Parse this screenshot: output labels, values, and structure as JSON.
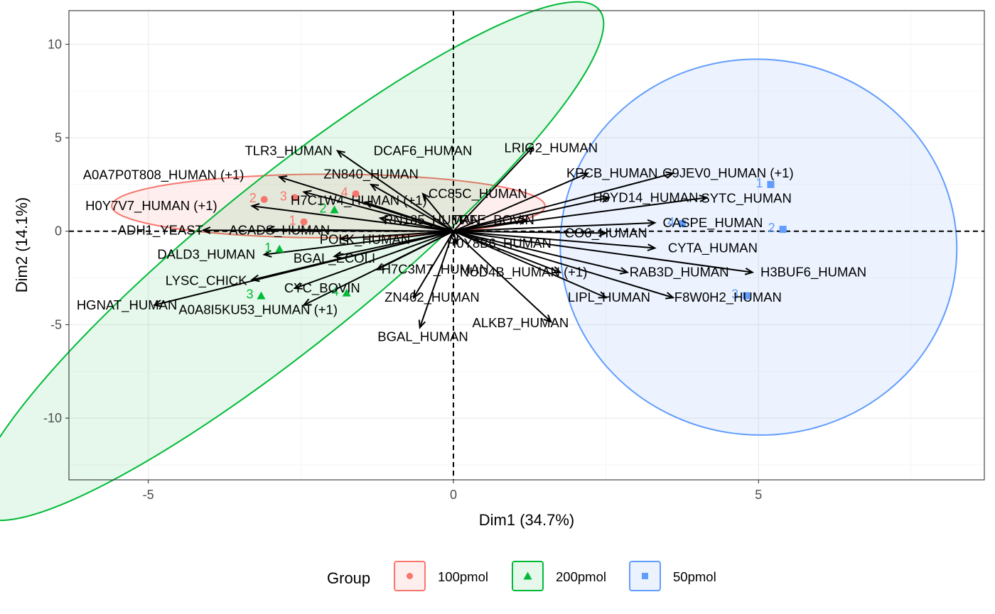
{
  "chart_data": {
    "type": "scatter",
    "subtype": "pca-biplot",
    "xlabel": "Dim1 (34.7%)",
    "ylabel": "Dim2 (14.1%)",
    "xlim": [
      -6.3,
      8.7
    ],
    "ylim": [
      -13.3,
      11.8
    ],
    "xticks": [
      -5,
      0,
      5
    ],
    "yticks": [
      -10,
      -5,
      0,
      5,
      10
    ],
    "xtick_labels": [
      "-5",
      "0",
      "5"
    ],
    "ytick_labels": [
      "-10",
      "-5",
      "0",
      "5",
      "10"
    ],
    "grid": true,
    "legend": {
      "title": "Group",
      "placement": "bottom",
      "entries": [
        {
          "label": "100pmol",
          "color": "#F8766D",
          "shape": "circle"
        },
        {
          "label": "200pmol",
          "color": "#00BA38",
          "shape": "triangle"
        },
        {
          "label": "50pmol",
          "color": "#619CFF",
          "shape": "square"
        }
      ]
    },
    "ellipses": [
      {
        "group": "100pmol",
        "cx": -2.05,
        "cy": 1.35,
        "rx": 3.55,
        "ry": 1.7,
        "angle": 0,
        "color": "#F8766D"
      },
      {
        "group": "200pmol",
        "cx": -2.7,
        "cy": -1.6,
        "rx": 6.55,
        "ry": 4.4,
        "angle": 39,
        "color": "#00BA38"
      },
      {
        "group": "50pmol",
        "cx": 5.0,
        "cy": -0.85,
        "rx": 3.25,
        "ry": 10.05,
        "angle": -5,
        "color": "#619CFF"
      }
    ],
    "series": [
      {
        "name": "100pmol",
        "color": "#F8766D",
        "points": [
          {
            "label": "1",
            "x": -2.45,
            "y": 0.5
          },
          {
            "label": "2",
            "x": -3.1,
            "y": 1.7
          },
          {
            "label": "3",
            "x": -2.6,
            "y": 1.8
          },
          {
            "label": "4",
            "x": -1.6,
            "y": 2.0
          }
        ]
      },
      {
        "name": "200pmol",
        "color": "#00BA38",
        "points": [
          {
            "label": "1",
            "x": -2.85,
            "y": -0.95
          },
          {
            "label": "2",
            "x": -1.95,
            "y": 1.15
          },
          {
            "label": "3",
            "x": -3.15,
            "y": -3.45
          },
          {
            "label": "4",
            "x": -1.75,
            "y": -3.3
          }
        ]
      },
      {
        "name": "50pmol",
        "color": "#619CFF",
        "points": [
          {
            "label": "1",
            "x": 5.2,
            "y": 2.5
          },
          {
            "label": "2",
            "x": 5.4,
            "y": 0.1
          },
          {
            "label": "3",
            "x": 4.8,
            "y": -3.45
          },
          {
            "label": "4",
            "x": 3.75,
            "y": 0.4
          }
        ]
      }
    ],
    "loadings": [
      {
        "label": "TLR3_HUMAN",
        "x": -1.9,
        "y": 4.3,
        "lx": -2.7,
        "ly": 4.3
      },
      {
        "label": "DCAF6_HUMAN",
        "x": -1.35,
        "y": 2.5,
        "lx": -0.5,
        "ly": 4.3
      },
      {
        "label": "LRIG2_HUMAN",
        "x": 1.3,
        "y": 4.5,
        "lx": 1.6,
        "ly": 4.45
      },
      {
        "label": "A0A7P0T808_HUMAN (+1)",
        "x": -2.85,
        "y": 2.9,
        "lx": -4.75,
        "ly": 3.0
      },
      {
        "label": "ZN840_HUMAN",
        "x": -2.45,
        "y": 2.1,
        "lx": -1.35,
        "ly": 3.05
      },
      {
        "label": "KPCB_HUMAN",
        "x": 2.2,
        "y": 3.1,
        "lx": 2.6,
        "ly": 3.1
      },
      {
        "label": "C9JEV0_HUMAN (+1)",
        "x": 3.6,
        "y": 3.1,
        "lx": 4.5,
        "ly": 3.1
      },
      {
        "label": "CC85C_HUMAN",
        "x": -0.5,
        "y": 2.0,
        "lx": 0.4,
        "ly": 2.0
      },
      {
        "label": "H7C1W4_HUMAN (+1)",
        "x": -1.45,
        "y": 1.55,
        "lx": -1.55,
        "ly": 1.65
      },
      {
        "label": "H0YD14_HUMAN",
        "x": 2.55,
        "y": 1.8,
        "lx": 3.15,
        "ly": 1.8
      },
      {
        "label": "SYTC_HUMAN",
        "x": 4.15,
        "y": 1.8,
        "lx": 4.8,
        "ly": 1.75
      },
      {
        "label": "H0Y7V7_HUMAN (+1)",
        "x": -3.3,
        "y": 1.35,
        "lx": -4.95,
        "ly": 1.35
      },
      {
        "label": "RN185_HUMAN",
        "x": -1.2,
        "y": 0.7,
        "lx": -0.35,
        "ly": 0.6
      },
      {
        "label": "TRFE_BOVIN",
        "x": 1.2,
        "y": 0.6,
        "lx": 0.65,
        "ly": 0.6
      },
      {
        "label": "CASPE_HUMAN",
        "x": 3.3,
        "y": 0.45,
        "lx": 4.25,
        "ly": 0.45
      },
      {
        "label": "ADH1_YEAST",
        "x": -4.1,
        "y": 0.05,
        "lx": -4.8,
        "ly": 0.05
      },
      {
        "label": "ACADS_HUMAN",
        "x": -3.05,
        "y": 0.1,
        "lx": -2.85,
        "ly": 0.05
      },
      {
        "label": "CO6_HUMAN",
        "x": 2.5,
        "y": -0.1,
        "lx": 2.5,
        "ly": -0.1
      },
      {
        "label": "POLK_HUMAN",
        "x": -1.85,
        "y": -0.4,
        "lx": -1.45,
        "ly": -0.45
      },
      {
        "label": "H0Y8B6_HUMAN",
        "x": 0.05,
        "y": -0.65,
        "lx": 0.75,
        "ly": -0.65
      },
      {
        "label": "CYTA_HUMAN",
        "x": 3.3,
        "y": -0.9,
        "lx": 4.25,
        "ly": -0.9
      },
      {
        "label": "DALD3_HUMAN",
        "x": -3.1,
        "y": -1.25,
        "lx": -4.05,
        "ly": -1.25
      },
      {
        "label": "BGAL_ECOLI",
        "x": -1.95,
        "y": -1.35,
        "lx": -1.95,
        "ly": -1.45
      },
      {
        "label": "H7C3M7_HUMAN",
        "x": -1.25,
        "y": -2.05,
        "lx": -0.3,
        "ly": -2.05
      },
      {
        "label": "NUD4B_HUMAN (+1)",
        "x": 1.75,
        "y": -2.2,
        "lx": 1.15,
        "ly": -2.2
      },
      {
        "label": "RAB3D_HUMAN",
        "x": 2.85,
        "y": -2.2,
        "lx": 3.7,
        "ly": -2.2
      },
      {
        "label": "H3BUF6_HUMAN",
        "x": 4.9,
        "y": -2.2,
        "lx": 5.9,
        "ly": -2.2
      },
      {
        "label": "LYSC_CHICK",
        "x": -3.3,
        "y": -2.6,
        "lx": -4.05,
        "ly": -2.65
      },
      {
        "label": "CYC_BOVIN",
        "x": -2.6,
        "y": -3.05,
        "lx": -2.15,
        "ly": -3.05
      },
      {
        "label": "ZN462_HUMAN",
        "x": -0.65,
        "y": -3.55,
        "lx": -0.35,
        "ly": -3.55
      },
      {
        "label": "LIPL_HUMAN",
        "x": 2.5,
        "y": -3.55,
        "lx": 2.55,
        "ly": -3.55
      },
      {
        "label": "F8W0H2_HUMAN",
        "x": 3.6,
        "y": -3.55,
        "lx": 4.5,
        "ly": -3.55
      },
      {
        "label": "HGNAT_HUMAN",
        "x": -4.9,
        "y": -3.95,
        "lx": -5.35,
        "ly": -3.95
      },
      {
        "label": "A0A8I5KU53_HUMAN (+1)",
        "x": -2.45,
        "y": -3.95,
        "lx": -3.2,
        "ly": -4.2
      },
      {
        "label": "ALKB7_HUMAN",
        "x": 1.6,
        "y": -4.85,
        "lx": 1.1,
        "ly": -4.9
      },
      {
        "label": "BGAL_HUMAN",
        "x": -0.55,
        "y": -5.15,
        "lx": -0.5,
        "ly": -5.65
      }
    ]
  }
}
